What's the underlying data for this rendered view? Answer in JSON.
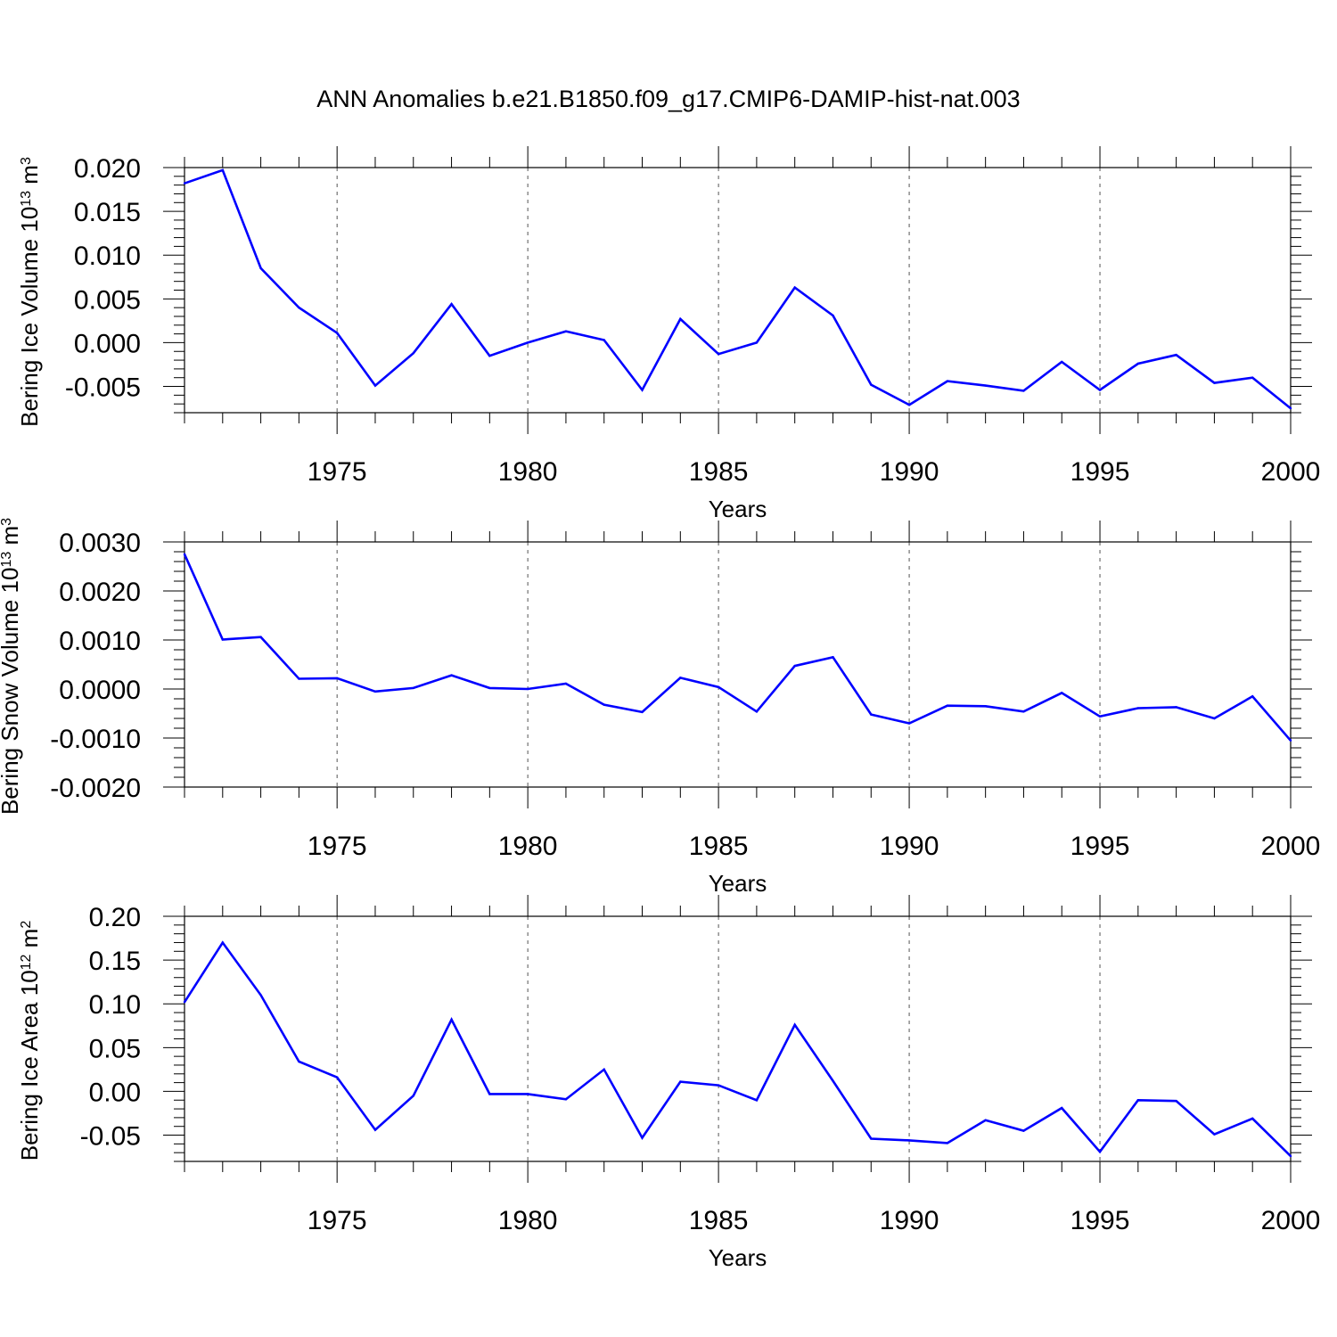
{
  "title": "ANN Anomalies b.e21.B1850.f09_g17.CMIP6-DAMIP-hist-nat.003",
  "colors": {
    "series": "#0000ff",
    "axis": "#000000",
    "grid": "#555555"
  },
  "chart_data": [
    {
      "type": "line",
      "xlabel": "Years",
      "ylabel": {
        "text": "Bering Ice Volume 10",
        "exp": "13",
        "unit": " m",
        "unit_exp": "3"
      },
      "xlim": [
        1971,
        2000
      ],
      "ylim": [
        -0.008,
        0.02
      ],
      "xticks": [
        1975,
        1980,
        1985,
        1990,
        1995,
        2000
      ],
      "yticks": [
        0.02,
        0.015,
        0.01,
        0.005,
        0.0,
        -0.005
      ],
      "ytick_labels": [
        "0.020",
        "0.015",
        "0.010",
        "0.005",
        "0.000",
        "-0.005"
      ],
      "grid": "vertical dashed at major x ticks",
      "x": [
        1971,
        1972,
        1973,
        1974,
        1975,
        1976,
        1977,
        1978,
        1979,
        1980,
        1981,
        1982,
        1983,
        1984,
        1985,
        1986,
        1987,
        1988,
        1989,
        1990,
        1991,
        1992,
        1993,
        1994,
        1995,
        1996,
        1997,
        1998,
        1999,
        2000
      ],
      "values": [
        0.0182,
        0.0197,
        0.0085,
        0.004,
        0.0011,
        -0.0049,
        -0.0012,
        0.0044,
        -0.0015,
        0.0,
        0.0013,
        0.0003,
        -0.0054,
        0.0027,
        -0.0013,
        0.0,
        0.0063,
        0.0031,
        -0.0048,
        -0.0071,
        -0.0044,
        -0.0049,
        -0.0055,
        -0.0022,
        -0.0054,
        -0.0024,
        -0.0014,
        -0.0046,
        -0.004,
        -0.0075
      ]
    },
    {
      "type": "line",
      "xlabel": "Years",
      "ylabel": {
        "text": "Bering Snow Volume 10",
        "exp": "13",
        "unit": " m",
        "unit_exp": "3"
      },
      "xlim": [
        1971,
        2000
      ],
      "ylim": [
        -0.002,
        0.003
      ],
      "xticks": [
        1975,
        1980,
        1985,
        1990,
        1995,
        2000
      ],
      "yticks": [
        0.003,
        0.002,
        0.001,
        0.0,
        -0.001,
        -0.002
      ],
      "ytick_labels": [
        "0.0030",
        "0.0020",
        "0.0010",
        "0.0000",
        "-0.0010",
        "-0.0020"
      ],
      "grid": "vertical dashed at major x ticks",
      "x": [
        1971,
        1972,
        1973,
        1974,
        1975,
        1976,
        1977,
        1978,
        1979,
        1980,
        1981,
        1982,
        1983,
        1984,
        1985,
        1986,
        1987,
        1988,
        1989,
        1990,
        1991,
        1992,
        1993,
        1994,
        1995,
        1996,
        1997,
        1998,
        1999,
        2000
      ],
      "values": [
        0.00275,
        0.00101,
        0.00106,
        0.00021,
        0.00022,
        -5e-05,
        2e-05,
        0.00028,
        2e-05,
        0.0,
        0.00011,
        -0.00032,
        -0.00047,
        0.00023,
        4e-05,
        -0.00046,
        0.00047,
        0.00065,
        -0.00052,
        -0.0007,
        -0.00034,
        -0.00035,
        -0.00046,
        -8e-05,
        -0.00056,
        -0.00039,
        -0.00037,
        -0.0006,
        -0.00015,
        -0.00105
      ]
    },
    {
      "type": "line",
      "xlabel": "Years",
      "ylabel": {
        "text": "Bering Ice Area 10",
        "exp": "12",
        "unit": " m",
        "unit_exp": "2"
      },
      "xlim": [
        1971,
        2000
      ],
      "ylim": [
        -0.08,
        0.2
      ],
      "xticks": [
        1975,
        1980,
        1985,
        1990,
        1995,
        2000
      ],
      "yticks": [
        0.2,
        0.15,
        0.1,
        0.05,
        0.0,
        -0.05
      ],
      "ytick_labels": [
        "0.20",
        "0.15",
        "0.10",
        "0.05",
        "0.00",
        "-0.05"
      ],
      "grid": "vertical dashed at major x ticks",
      "x": [
        1971,
        1972,
        1973,
        1974,
        1975,
        1976,
        1977,
        1978,
        1979,
        1980,
        1981,
        1982,
        1983,
        1984,
        1985,
        1986,
        1987,
        1988,
        1989,
        1990,
        1991,
        1992,
        1993,
        1994,
        1995,
        1996,
        1997,
        1998,
        1999,
        2000
      ],
      "values": [
        0.102,
        0.17,
        0.11,
        0.034,
        0.016,
        -0.044,
        -0.005,
        0.082,
        -0.003,
        -0.003,
        -0.009,
        0.025,
        -0.053,
        0.011,
        0.007,
        -0.01,
        0.076,
        0.012,
        -0.054,
        -0.056,
        -0.059,
        -0.033,
        -0.045,
        -0.019,
        -0.069,
        -0.01,
        -0.011,
        -0.049,
        -0.031,
        -0.074
      ]
    }
  ]
}
